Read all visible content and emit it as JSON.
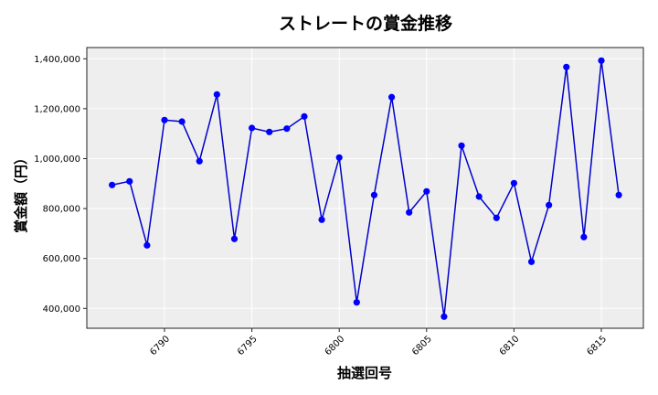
{
  "chart_data": {
    "type": "line",
    "title": "ストレートの賞金推移",
    "xlabel": "抽選回号",
    "ylabel": "賞金額（円）",
    "x": [
      6787,
      6788,
      6789,
      6790,
      6791,
      6792,
      6793,
      6794,
      6795,
      6796,
      6797,
      6798,
      6799,
      6800,
      6801,
      6802,
      6803,
      6804,
      6805,
      6806,
      6807,
      6808,
      6809,
      6810,
      6811,
      6812,
      6813,
      6814,
      6815,
      6816
    ],
    "series": [
      {
        "name": "ストレート",
        "color": "#0000ff",
        "values": [
          894500,
          909000,
          652700,
          1154600,
          1148400,
          989700,
          1257100,
          678400,
          1122700,
          1107000,
          1120200,
          1169000,
          755300,
          1004400,
          424300,
          854200,
          1246200,
          784600,
          868900,
          367000,
          1052000,
          848000,
          762600,
          901800,
          586800,
          813900,
          1367000,
          685700,
          1392700,
          854200
        ]
      }
    ],
    "xticks": [
      6790,
      6795,
      6800,
      6805,
      6810,
      6815
    ],
    "xtick_labels": [
      "6790",
      "6795",
      "6800",
      "6805",
      "6810",
      "6815"
    ],
    "yticks": [
      400000,
      600000,
      800000,
      1000000,
      1200000,
      1400000
    ],
    "ytick_labels": [
      "400,000",
      "600,000",
      "800,000",
      "1,000,000",
      "1,200,000",
      "1,400,000"
    ],
    "xlim": [
      6785.5,
      6817.5
    ],
    "ylim": [
      320000,
      1445000
    ],
    "grid": true,
    "legend": null,
    "background": "#eeeeee",
    "grid_color": "#ffffff"
  }
}
